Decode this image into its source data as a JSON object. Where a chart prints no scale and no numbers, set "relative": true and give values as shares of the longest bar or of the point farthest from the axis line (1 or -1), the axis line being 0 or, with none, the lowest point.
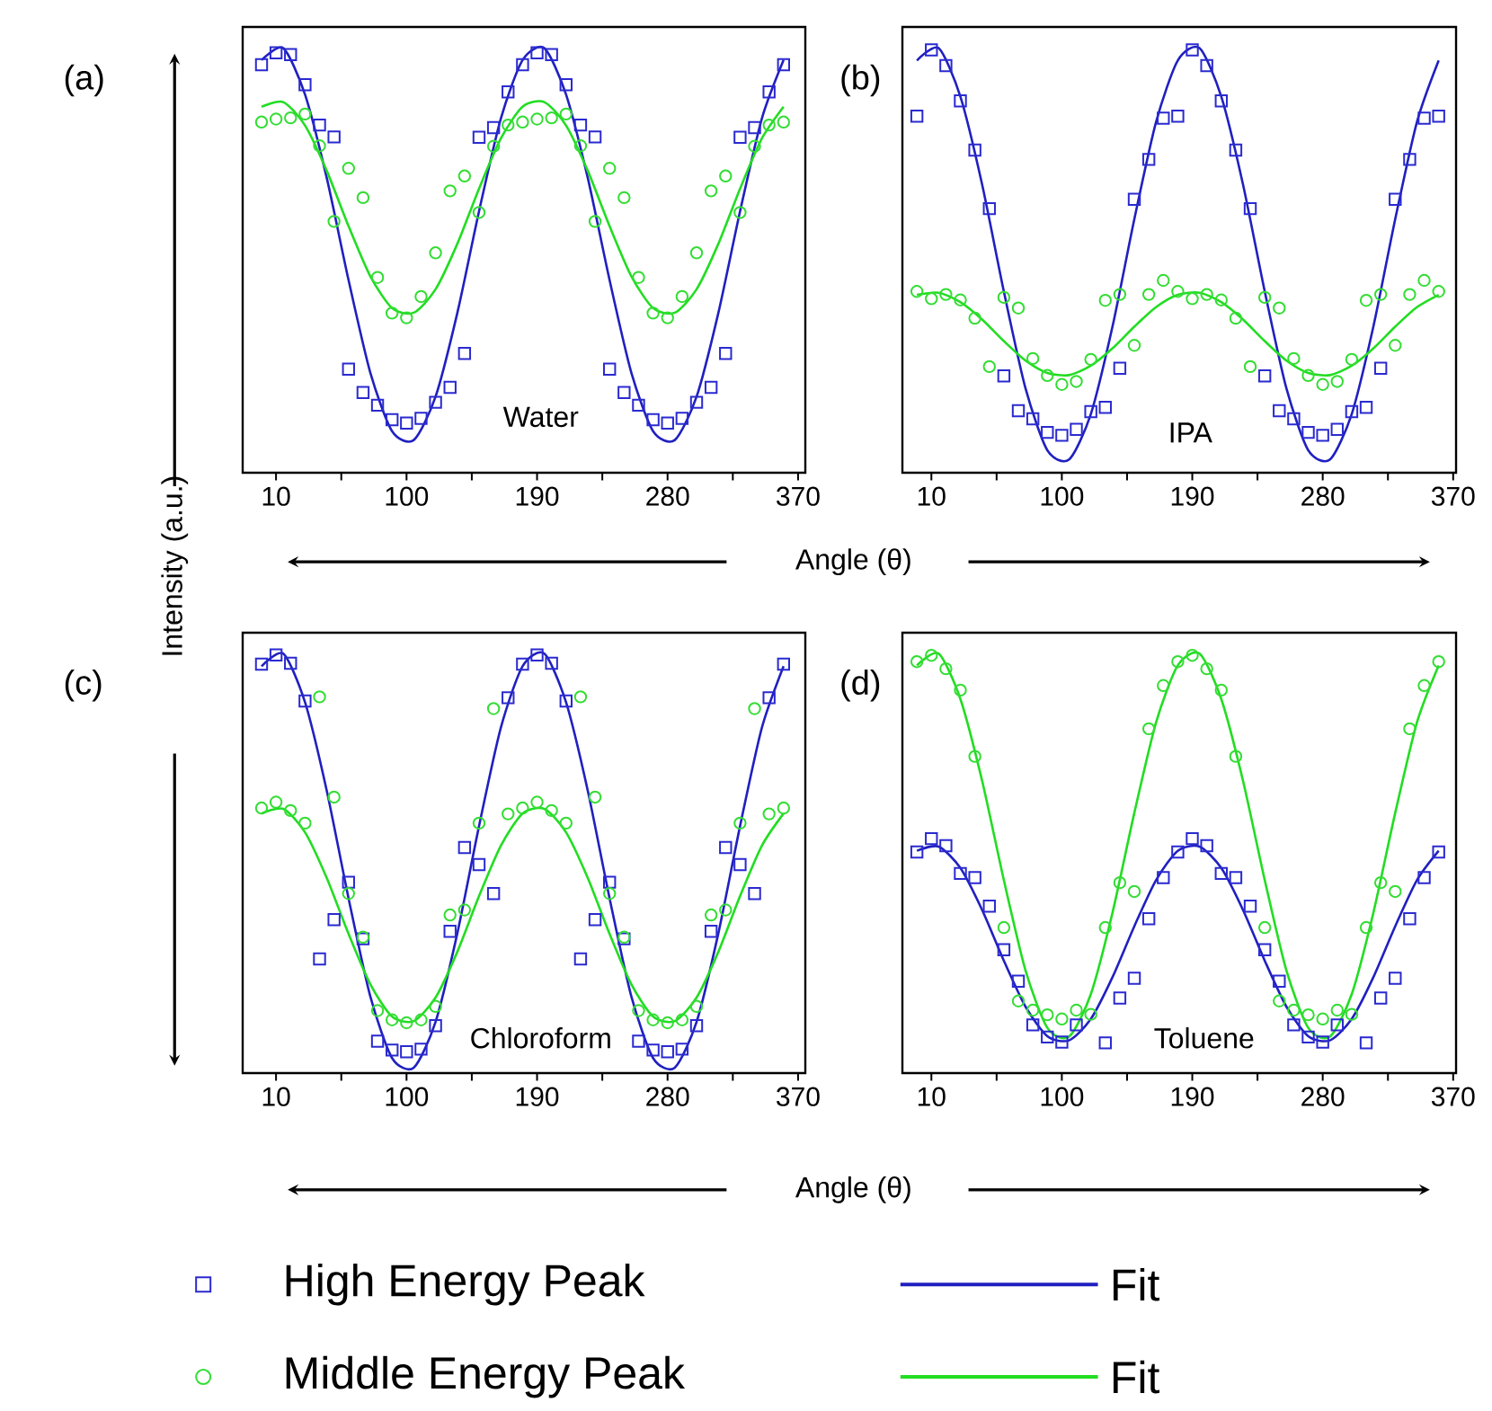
{
  "chart_data": [
    {
      "type": "scatter",
      "title": "(a)",
      "xlabel": "Angle (θ)",
      "ylabel": "Intensity (a.u.)",
      "annotations": [
        "Water"
      ],
      "relative": true,
      "x": [
        0,
        10,
        20,
        30,
        40,
        50,
        60,
        70,
        80,
        90,
        100,
        110,
        120,
        130,
        140,
        150,
        160,
        170,
        180,
        190,
        200,
        210,
        220,
        230,
        240,
        250,
        260,
        270,
        280,
        290,
        300,
        310,
        320,
        330,
        340,
        350,
        360
      ],
      "xlim": [
        -13,
        375
      ],
      "xticks": [
        10,
        {
          "value": 55,
          "label": null
        },
        100,
        {
          "value": 145,
          "label": null
        },
        190,
        {
          "value": 235,
          "label": null
        },
        280,
        {
          "value": 325,
          "label": null
        },
        370
      ],
      "series": [
        {
          "type": "scatter",
          "marker": "square",
          "color": "#2a2ad0",
          "values": [
            0.961,
            0.989,
            0.985,
            0.914,
            0.819,
            0.791,
            0.244,
            0.189,
            0.159,
            0.125,
            0.117,
            0.128,
            0.166,
            0.201,
            0.281,
            0.79,
            0.813,
            0.897,
            0.961,
            0.989,
            0.985,
            0.914,
            0.819,
            0.791,
            0.244,
            0.189,
            0.159,
            0.125,
            0.117,
            0.128,
            0.166,
            0.201,
            0.281,
            0.79,
            0.813,
            0.897,
            0.961
          ]
        },
        {
          "type": "line",
          "color": "#2020c0",
          "x": [
            0,
            15,
            30,
            45,
            60,
            75,
            90,
            105,
            120,
            135,
            150,
            165,
            180,
            195,
            210,
            225,
            240,
            255,
            270,
            285,
            300,
            315,
            330,
            345,
            360
          ],
          "values": [
            0.972,
            1.0,
            0.891,
            0.694,
            0.454,
            0.236,
            0.098,
            0.077,
            0.179,
            0.376,
            0.616,
            0.834,
            0.972,
            1.0,
            0.891,
            0.694,
            0.454,
            0.236,
            0.098,
            0.077,
            0.179,
            0.376,
            0.616,
            0.834,
            0.972
          ]
        },
        {
          "type": "scatter",
          "marker": "circle",
          "color": "#33dd33",
          "values": [
            0.826,
            0.833,
            0.836,
            0.845,
            0.77,
            0.592,
            0.717,
            0.648,
            0.46,
            0.376,
            0.365,
            0.415,
            0.518,
            0.664,
            0.699,
            0.613,
            0.769,
            0.819,
            0.826,
            0.833,
            0.836,
            0.845,
            0.77,
            0.592,
            0.717,
            0.648,
            0.46,
            0.376,
            0.365,
            0.415,
            0.518,
            0.664,
            0.699,
            0.613,
            0.769,
            0.819,
            0.826
          ]
        },
        {
          "type": "line",
          "color": "#22dd22",
          "x": [
            0,
            15,
            30,
            45,
            60,
            75,
            90,
            105,
            120,
            135,
            150,
            165,
            180,
            195,
            210,
            225,
            240,
            255,
            270,
            285,
            300,
            315,
            330,
            345,
            360
          ],
          "values": [
            0.862,
            0.873,
            0.818,
            0.711,
            0.581,
            0.463,
            0.388,
            0.377,
            0.432,
            0.539,
            0.669,
            0.787,
            0.862,
            0.873,
            0.818,
            0.711,
            0.581,
            0.463,
            0.388,
            0.377,
            0.432,
            0.539,
            0.669,
            0.787,
            0.862
          ]
        }
      ]
    },
    {
      "type": "scatter",
      "title": "(b)",
      "annotations": [
        "IPA"
      ],
      "relative": true,
      "x": [
        0,
        10,
        20,
        30,
        40,
        50,
        60,
        70,
        80,
        90,
        100,
        110,
        120,
        130,
        140,
        150,
        160,
        170,
        180,
        190,
        200,
        210,
        220,
        230,
        240,
        250,
        260,
        270,
        280,
        290,
        300,
        310,
        320,
        330,
        340,
        350,
        360
      ],
      "xlim": [
        -10,
        372
      ],
      "xticks": [
        10,
        {
          "value": 55,
          "label": null
        },
        100,
        {
          "value": 145,
          "label": null
        },
        190,
        {
          "value": 235,
          "label": null
        },
        280,
        {
          "value": 325,
          "label": null
        },
        370
      ],
      "series": [
        {
          "type": "scatter",
          "marker": "square",
          "color": "#2a2ad0",
          "values": [
            0.84,
            0.996,
            0.959,
            0.876,
            0.76,
            0.622,
            0.228,
            0.146,
            0.127,
            0.095,
            0.088,
            0.102,
            0.144,
            0.154,
            0.246,
            0.644,
            0.738,
            0.835,
            0.84,
            0.996,
            0.959,
            0.876,
            0.76,
            0.622,
            0.228,
            0.146,
            0.127,
            0.095,
            0.088,
            0.102,
            0.144,
            0.154,
            0.246,
            0.644,
            0.738,
            0.835,
            0.84
          ]
        },
        {
          "type": "line",
          "color": "#2020c0",
          "x": [
            0,
            15,
            30,
            45,
            60,
            75,
            90,
            105,
            120,
            135,
            150,
            165,
            180,
            195,
            210,
            225,
            240,
            255,
            270,
            285,
            300,
            315,
            330,
            345,
            360
          ],
          "values": [
            0.971,
            1.0,
            0.886,
            0.679,
            0.427,
            0.198,
            0.053,
            0.031,
            0.138,
            0.345,
            0.597,
            0.826,
            0.971,
            1.0,
            0.886,
            0.679,
            0.427,
            0.198,
            0.053,
            0.031,
            0.138,
            0.345,
            0.597,
            0.826,
            0.971
          ]
        },
        {
          "type": "scatter",
          "marker": "circle",
          "color": "#33dd33",
          "values": [
            0.427,
            0.41,
            0.42,
            0.407,
            0.364,
            0.25,
            0.413,
            0.388,
            0.269,
            0.229,
            0.208,
            0.215,
            0.267,
            0.406,
            0.42,
            0.3,
            0.42,
            0.453,
            0.427,
            0.41,
            0.42,
            0.407,
            0.364,
            0.25,
            0.413,
            0.388,
            0.269,
            0.229,
            0.208,
            0.215,
            0.267,
            0.406,
            0.42,
            0.3,
            0.42,
            0.453,
            0.427
          ]
        },
        {
          "type": "line",
          "color": "#22dd22",
          "x": [
            0,
            15,
            30,
            45,
            60,
            75,
            90,
            105,
            120,
            135,
            150,
            165,
            180,
            195,
            210,
            225,
            240,
            255,
            270,
            285,
            300,
            315,
            330,
            345,
            360
          ],
          "values": [
            0.419,
            0.424,
            0.402,
            0.361,
            0.31,
            0.264,
            0.235,
            0.23,
            0.252,
            0.293,
            0.344,
            0.39,
            0.419,
            0.424,
            0.402,
            0.361,
            0.31,
            0.264,
            0.235,
            0.23,
            0.252,
            0.293,
            0.344,
            0.39,
            0.419
          ]
        }
      ]
    },
    {
      "type": "scatter",
      "title": "(c)",
      "xlabel": "Angle (θ)",
      "annotations": [
        "Chloroform"
      ],
      "relative": true,
      "legend": "bottom",
      "x": [
        0,
        10,
        20,
        30,
        40,
        50,
        60,
        70,
        80,
        90,
        100,
        110,
        120,
        130,
        140,
        150,
        160,
        170,
        180,
        190,
        200,
        210,
        220,
        230,
        240,
        250,
        260,
        270,
        280,
        290,
        300,
        310,
        320,
        330,
        340,
        350,
        360
      ],
      "xlim": [
        -13,
        375
      ],
      "xticks": [
        10,
        {
          "value": 55,
          "label": null
        },
        100,
        {
          "value": 145,
          "label": null
        },
        190,
        {
          "value": 235,
          "label": null
        },
        280,
        {
          "value": 325,
          "label": null
        },
        370
      ],
      "series": [
        {
          "name": "High Energy Peak",
          "type": "scatter",
          "marker": "square",
          "color": "#2a2ad0",
          "values": [
            0.975,
            0.997,
            0.977,
            0.887,
            0.272,
            0.366,
            0.455,
            0.32,
            0.076,
            0.055,
            0.051,
            0.057,
            0.113,
            0.338,
            0.538,
            0.497,
            0.428,
            0.895,
            0.975,
            0.997,
            0.977,
            0.887,
            0.272,
            0.366,
            0.455,
            0.32,
            0.076,
            0.055,
            0.051,
            0.057,
            0.113,
            0.338,
            0.538,
            0.497,
            0.428,
            0.895,
            0.975
          ]
        },
        {
          "name": "Fit",
          "type": "line",
          "color": "#2020c0",
          "x": [
            0,
            15,
            30,
            45,
            60,
            75,
            90,
            105,
            120,
            135,
            150,
            165,
            180,
            195,
            210,
            225,
            240,
            255,
            270,
            285,
            300,
            315,
            330,
            345,
            360
          ],
          "values": [
            0.97,
            1.0,
            0.884,
            0.673,
            0.417,
            0.183,
            0.036,
            0.013,
            0.122,
            0.333,
            0.589,
            0.823,
            0.97,
            1.0,
            0.884,
            0.673,
            0.417,
            0.183,
            0.036,
            0.013,
            0.122,
            0.333,
            0.589,
            0.823,
            0.97
          ]
        },
        {
          "name": "Middle Energy Peak",
          "type": "scatter",
          "marker": "circle",
          "color": "#33dd33",
          "values": [
            0.632,
            0.646,
            0.626,
            0.596,
            0.897,
            0.658,
            0.428,
            0.324,
            0.149,
            0.127,
            0.12,
            0.127,
            0.159,
            0.377,
            0.389,
            0.596,
            0.869,
            0.618,
            0.632,
            0.646,
            0.626,
            0.596,
            0.897,
            0.658,
            0.428,
            0.324,
            0.149,
            0.127,
            0.12,
            0.127,
            0.159,
            0.377,
            0.389,
            0.596,
            0.869,
            0.618,
            0.632
          ]
        },
        {
          "name": "Fit",
          "type": "line",
          "color": "#22dd22",
          "x": [
            0,
            15,
            30,
            45,
            60,
            75,
            90,
            105,
            120,
            135,
            150,
            165,
            180,
            195,
            210,
            225,
            240,
            255,
            270,
            285,
            300,
            315,
            330,
            345,
            360
          ],
          "values": [
            0.619,
            0.63,
            0.574,
            0.465,
            0.332,
            0.212,
            0.135,
            0.124,
            0.18,
            0.289,
            0.422,
            0.542,
            0.619,
            0.63,
            0.574,
            0.465,
            0.332,
            0.212,
            0.135,
            0.124,
            0.18,
            0.289,
            0.422,
            0.542,
            0.619
          ]
        }
      ]
    },
    {
      "type": "scatter",
      "title": "(d)",
      "annotations": [
        "Toluene"
      ],
      "relative": true,
      "x": [
        0,
        10,
        20,
        30,
        40,
        50,
        60,
        70,
        80,
        90,
        100,
        110,
        120,
        130,
        140,
        150,
        160,
        170,
        180,
        190,
        200,
        210,
        220,
        230,
        240,
        250,
        260,
        270,
        280,
        290,
        300,
        310,
        320,
        330,
        340,
        350,
        360
      ],
      "xlim": [
        -10,
        372
      ],
      "xticks": [
        10,
        {
          "value": 55,
          "label": null
        },
        100,
        {
          "value": 145,
          "label": null
        },
        190,
        {
          "value": 235,
          "label": null
        },
        280,
        {
          "value": 325,
          "label": null
        },
        370
      ],
      "series": [
        {
          "type": "scatter",
          "marker": "square",
          "color": "#2a2ad0",
          "values": [
            0.527,
            0.559,
            0.542,
            0.476,
            0.466,
            0.398,
            0.294,
            0.219,
            0.115,
            0.086,
            0.074,
            0.115,
            null,
            0.072,
            0.179,
            0.226,
            0.368,
            0.466,
            0.527,
            0.559,
            0.542,
            0.476,
            0.466,
            0.398,
            0.294,
            0.219,
            0.115,
            0.086,
            0.074,
            0.115,
            null,
            0.072,
            0.179,
            0.226,
            0.368,
            0.466,
            0.527
          ]
        },
        {
          "type": "line",
          "color": "#2020c0",
          "x": [
            0,
            15,
            30,
            45,
            60,
            75,
            90,
            105,
            120,
            135,
            150,
            165,
            180,
            195,
            210,
            225,
            240,
            255,
            270,
            285,
            300,
            315,
            330,
            345,
            360
          ],
          "values": [
            0.53,
            0.54,
            0.489,
            0.389,
            0.268,
            0.158,
            0.088,
            0.078,
            0.129,
            0.229,
            0.35,
            0.46,
            0.53,
            0.54,
            0.489,
            0.389,
            0.268,
            0.158,
            0.088,
            0.078,
            0.129,
            0.229,
            0.35,
            0.46,
            0.53
          ]
        },
        {
          "type": "scatter",
          "marker": "circle",
          "color": "#33dd33",
          "values": [
            0.981,
            0.996,
            0.964,
            0.913,
            0.755,
            null,
            0.347,
            0.172,
            0.15,
            0.139,
            0.129,
            0.15,
            0.14,
            0.347,
            0.454,
            0.433,
            0.821,
            0.924,
            0.981,
            0.996,
            0.964,
            0.913,
            0.755,
            null,
            0.347,
            0.172,
            0.15,
            0.139,
            0.129,
            0.15,
            0.14,
            0.347,
            0.454,
            0.433,
            0.821,
            0.924,
            0.981
          ]
        },
        {
          "type": "line",
          "color": "#22dd22",
          "x": [
            0,
            15,
            30,
            45,
            60,
            75,
            90,
            105,
            120,
            135,
            150,
            165,
            180,
            195,
            210,
            225,
            240,
            255,
            270,
            285,
            300,
            315,
            330,
            345,
            360
          ],
          "values": [
            0.972,
            1.0,
            0.892,
            0.697,
            0.46,
            0.244,
            0.108,
            0.087,
            0.188,
            0.383,
            0.62,
            0.836,
            0.972,
            1.0,
            0.892,
            0.697,
            0.46,
            0.244,
            0.108,
            0.087,
            0.188,
            0.383,
            0.62,
            0.836,
            0.972
          ]
        }
      ]
    }
  ]
}
